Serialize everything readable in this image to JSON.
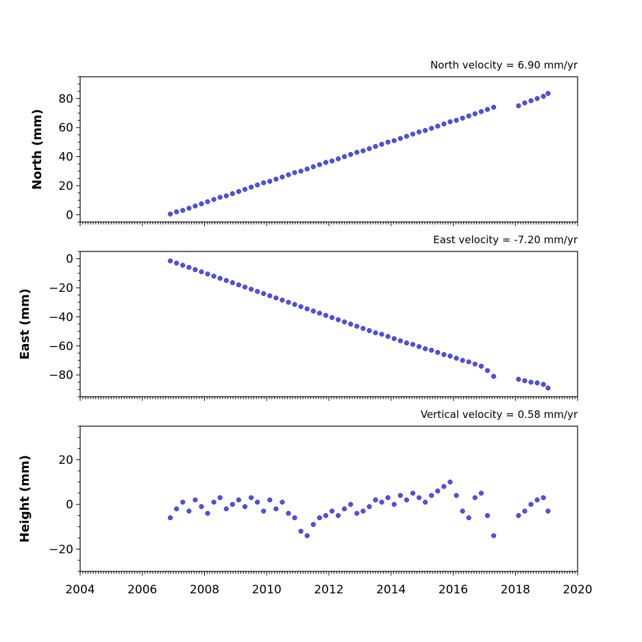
{
  "chart_data": [
    {
      "type": "scatter",
      "title": "North velocity = 6.90 mm/yr",
      "ylabel": "North (mm)",
      "xlim": [
        2004,
        2020
      ],
      "ylim": [
        -5,
        95
      ],
      "yticks": [
        0,
        20,
        40,
        60,
        80
      ],
      "ytick_labels": [
        "0",
        "20",
        "40",
        "60",
        "80"
      ],
      "series": [
        {
          "x": [
            2006.9,
            2007.1,
            2007.3,
            2007.5,
            2007.7,
            2007.9,
            2008.1,
            2008.3,
            2008.5,
            2008.7,
            2008.9,
            2009.1,
            2009.3,
            2009.5,
            2009.7,
            2009.9,
            2010.1,
            2010.3,
            2010.5,
            2010.7,
            2010.9,
            2011.1,
            2011.3,
            2011.5,
            2011.7,
            2011.9,
            2012.1,
            2012.3,
            2012.5,
            2012.7,
            2012.9,
            2013.1,
            2013.3,
            2013.5,
            2013.7,
            2013.9,
            2014.1,
            2014.3,
            2014.5,
            2014.7,
            2014.9,
            2015.1,
            2015.3,
            2015.5,
            2015.7,
            2015.9,
            2016.1,
            2016.3,
            2016.5,
            2016.7,
            2016.9,
            2017.1,
            2017.3,
            2018.1,
            2018.3,
            2018.5,
            2018.7,
            2018.9,
            2019.05
          ],
          "y": [
            0.5,
            2,
            3,
            4.5,
            6,
            7.5,
            9,
            10.5,
            12,
            13,
            14.5,
            16,
            17.5,
            19,
            20.5,
            22,
            23,
            24.5,
            26,
            27.5,
            29,
            30,
            31.5,
            33,
            34.5,
            36,
            37,
            38.5,
            40,
            41.5,
            43,
            44,
            45.5,
            47,
            48.5,
            50,
            51,
            52.5,
            54,
            55.5,
            57,
            58,
            59.5,
            61,
            62.5,
            64,
            65,
            66.5,
            68,
            69.5,
            71,
            72.5,
            74,
            75,
            77,
            78.5,
            80,
            81.5,
            83.5
          ]
        }
      ]
    },
    {
      "type": "scatter",
      "title": "East velocity = -7.20 mm/yr",
      "ylabel": "East (mm)",
      "xlim": [
        2004,
        2020
      ],
      "ylim": [
        -95,
        5
      ],
      "yticks": [
        0,
        -20,
        -40,
        -60,
        -80
      ],
      "ytick_labels": [
        "0",
        "−20",
        "−40",
        "−60",
        "−80"
      ],
      "series": [
        {
          "x": [
            2006.9,
            2007.1,
            2007.3,
            2007.5,
            2007.7,
            2007.9,
            2008.1,
            2008.3,
            2008.5,
            2008.7,
            2008.9,
            2009.1,
            2009.3,
            2009.5,
            2009.7,
            2009.9,
            2010.1,
            2010.3,
            2010.5,
            2010.7,
            2010.9,
            2011.1,
            2011.3,
            2011.5,
            2011.7,
            2011.9,
            2012.1,
            2012.3,
            2012.5,
            2012.7,
            2012.9,
            2013.1,
            2013.3,
            2013.5,
            2013.7,
            2013.9,
            2014.1,
            2014.3,
            2014.5,
            2014.7,
            2014.9,
            2015.1,
            2015.3,
            2015.5,
            2015.7,
            2015.9,
            2016.1,
            2016.3,
            2016.5,
            2016.7,
            2016.9,
            2017.1,
            2017.3,
            2018.1,
            2018.3,
            2018.5,
            2018.7,
            2018.9,
            2019.05
          ],
          "y": [
            -1.5,
            -3,
            -4.5,
            -6,
            -7.5,
            -9,
            -10.5,
            -12,
            -13.5,
            -15,
            -16.5,
            -18,
            -19.5,
            -21,
            -22.5,
            -24,
            -25.5,
            -27,
            -28.5,
            -30,
            -31.5,
            -33,
            -34.5,
            -36,
            -37.5,
            -39,
            -40.5,
            -42,
            -43.5,
            -45,
            -46.5,
            -48,
            -49.5,
            -51,
            -52,
            -53.5,
            -55,
            -56.5,
            -58,
            -59,
            -60.5,
            -62,
            -63,
            -64.5,
            -66,
            -67,
            -68.5,
            -70,
            -71,
            -72.5,
            -74,
            -77,
            -81,
            -83,
            -84,
            -85,
            -85.5,
            -86.5,
            -89
          ]
        }
      ]
    },
    {
      "type": "scatter",
      "title": "Vertical velocity = 0.58 mm/yr",
      "ylabel": "Height (mm)",
      "xlim": [
        2004,
        2020
      ],
      "ylim": [
        -30,
        35
      ],
      "yticks": [
        20,
        0,
        -20
      ],
      "ytick_labels": [
        "20",
        "0",
        "−20"
      ],
      "series": [
        {
          "x": [
            2006.9,
            2007.1,
            2007.3,
            2007.5,
            2007.7,
            2007.9,
            2008.1,
            2008.3,
            2008.5,
            2008.7,
            2008.9,
            2009.1,
            2009.3,
            2009.5,
            2009.7,
            2009.9,
            2010.1,
            2010.3,
            2010.5,
            2010.7,
            2010.9,
            2011.1,
            2011.3,
            2011.5,
            2011.7,
            2011.9,
            2012.1,
            2012.3,
            2012.5,
            2012.7,
            2012.9,
            2013.1,
            2013.3,
            2013.5,
            2013.7,
            2013.9,
            2014.1,
            2014.3,
            2014.5,
            2014.7,
            2014.9,
            2015.1,
            2015.3,
            2015.5,
            2015.7,
            2015.9,
            2016.1,
            2016.3,
            2016.5,
            2016.7,
            2016.9,
            2017.1,
            2017.3,
            2018.1,
            2018.3,
            2018.5,
            2018.7,
            2018.9,
            2019.05
          ],
          "y": [
            -6,
            -2,
            1,
            -3,
            2,
            -1,
            -4,
            1,
            3,
            -2,
            0,
            2,
            -1,
            3,
            1,
            -3,
            2,
            -2,
            1,
            -4,
            -6,
            -12,
            -14,
            -9,
            -6,
            -5,
            -3,
            -5,
            -2,
            0,
            -4,
            -3,
            -1,
            2,
            1,
            3,
            0,
            4,
            2,
            5,
            3,
            1,
            4,
            6,
            8,
            10,
            4,
            -3,
            -6,
            3,
            5,
            -5,
            -14,
            -5,
            -3,
            0,
            2,
            3,
            -3
          ]
        }
      ]
    }
  ],
  "x_axis": {
    "ticks": [
      2004,
      2006,
      2008,
      2010,
      2012,
      2014,
      2016,
      2018,
      2020
    ],
    "tick_labels": [
      "2004",
      "2006",
      "2008",
      "2010",
      "2012",
      "2014",
      "2016",
      "2018",
      "2020"
    ]
  },
  "colors": {
    "marker_fill": "#5050f4",
    "marker_edge": "#111144"
  },
  "grid": false,
  "legend": "none"
}
